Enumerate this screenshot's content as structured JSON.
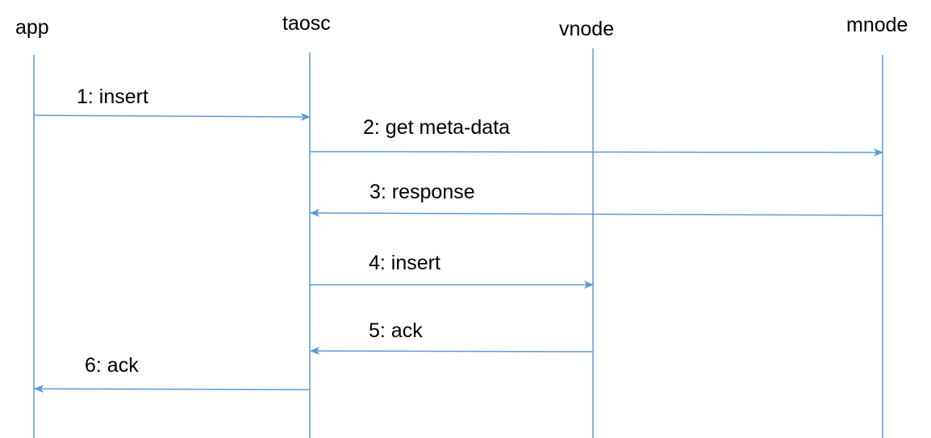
{
  "line_color": "#5b9bd5",
  "participants": [
    {
      "id": "app",
      "label": "app"
    },
    {
      "id": "taosc",
      "label": "taosc"
    },
    {
      "id": "vnode",
      "label": "vnode"
    },
    {
      "id": "mnode",
      "label": "mnode"
    }
  ],
  "messages": [
    {
      "from": "app",
      "to": "taosc",
      "label": "1: insert"
    },
    {
      "from": "taosc",
      "to": "mnode",
      "label": "2: get meta-data"
    },
    {
      "from": "mnode",
      "to": "taosc",
      "label": "3: response"
    },
    {
      "from": "taosc",
      "to": "vnode",
      "label": "4: insert"
    },
    {
      "from": "vnode",
      "to": "taosc",
      "label": "5: ack"
    },
    {
      "from": "taosc",
      "to": "app",
      "label": "6: ack"
    }
  ]
}
